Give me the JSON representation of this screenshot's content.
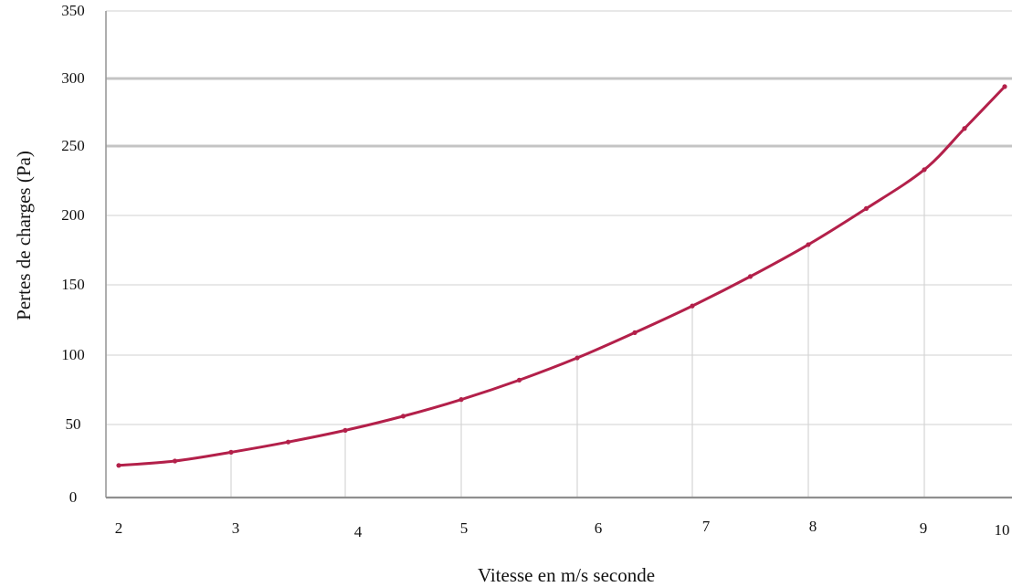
{
  "chart_data": {
    "type": "line",
    "title": "",
    "xlabel": "Vitesse en m/s seconde",
    "ylabel": "Pertes de charges (Pa)",
    "xlim": [
      2,
      10
    ],
    "ylim": [
      0,
      350
    ],
    "x_ticks": [
      "2",
      "3",
      "4",
      "5",
      "6",
      "7",
      "8",
      "9",
      "10"
    ],
    "y_ticks": [
      "0",
      "50",
      "100",
      "150",
      "200",
      "250",
      "300",
      "350"
    ],
    "grid": true,
    "series": [
      {
        "color": "#b3204a",
        "x": [
          2,
          2.5,
          3,
          3.5,
          4,
          4.5,
          5,
          5.5,
          6,
          6.5,
          7,
          7.5,
          8,
          8.5,
          9,
          9.5,
          10
        ],
        "y": [
          22,
          25,
          31,
          38,
          46,
          56,
          68,
          82,
          98,
          116,
          135,
          156,
          179,
          205,
          233,
          263,
          294
        ]
      }
    ]
  }
}
